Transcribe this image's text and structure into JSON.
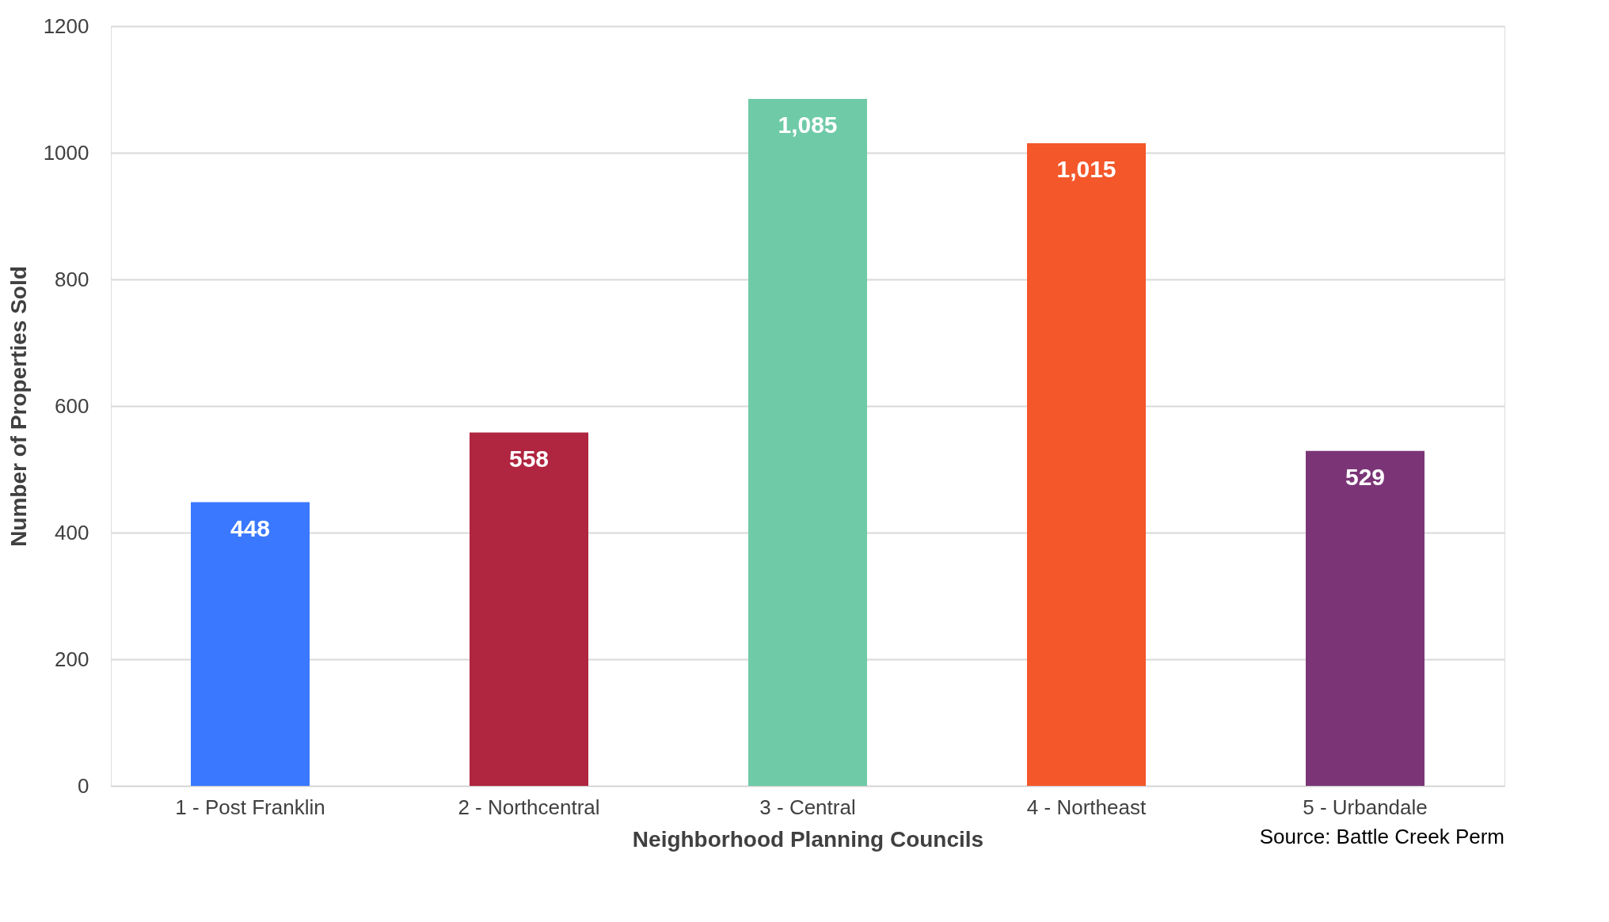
{
  "chart_data": {
    "type": "bar",
    "xlabel": "Neighborhood Planning Councils",
    "ylabel": "Number of Properties Sold",
    "categories": [
      "1 - Post Franklin",
      "2 - Northcentral",
      "3 - Central",
      "4 - Northeast",
      "5 - Urbandale"
    ],
    "values": [
      448,
      558,
      1085,
      1015,
      529
    ],
    "value_labels": [
      "448",
      "558",
      "1,085",
      "1,015",
      "529"
    ],
    "colors": [
      "#3a78ff",
      "#b0253f",
      "#6fcaa8",
      "#f4572a",
      "#7b3577"
    ],
    "ylim": [
      0,
      1200
    ],
    "yticks": [
      0,
      200,
      400,
      600,
      800,
      1000,
      1200
    ],
    "grid": "y",
    "annotations": [
      "Source: Battle Creek Perm"
    ]
  }
}
